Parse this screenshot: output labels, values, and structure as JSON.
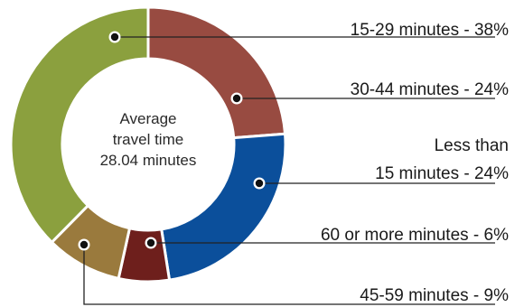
{
  "chart_data": {
    "type": "pie",
    "donut": true,
    "center_text": [
      "Average",
      "travel time",
      "28.04 minutes"
    ],
    "slices": [
      {
        "label_lines": [
          "15-29 minutes - 38%"
        ],
        "value": 38,
        "color": "#8ba03e"
      },
      {
        "label_lines": [
          "30-44 minutes - 24%"
        ],
        "value": 24,
        "color": "#984b41"
      },
      {
        "label_lines": [
          "Less than",
          "15 minutes - 24%"
        ],
        "value": 24,
        "color": "#0b4f9b"
      },
      {
        "label_lines": [
          "60 or more minutes - 6%"
        ],
        "value": 6,
        "color": "#6e1f1c"
      },
      {
        "label_lines": [
          "45-59 minutes - 9%"
        ],
        "value": 9,
        "color": "#9a7a3d"
      }
    ]
  }
}
